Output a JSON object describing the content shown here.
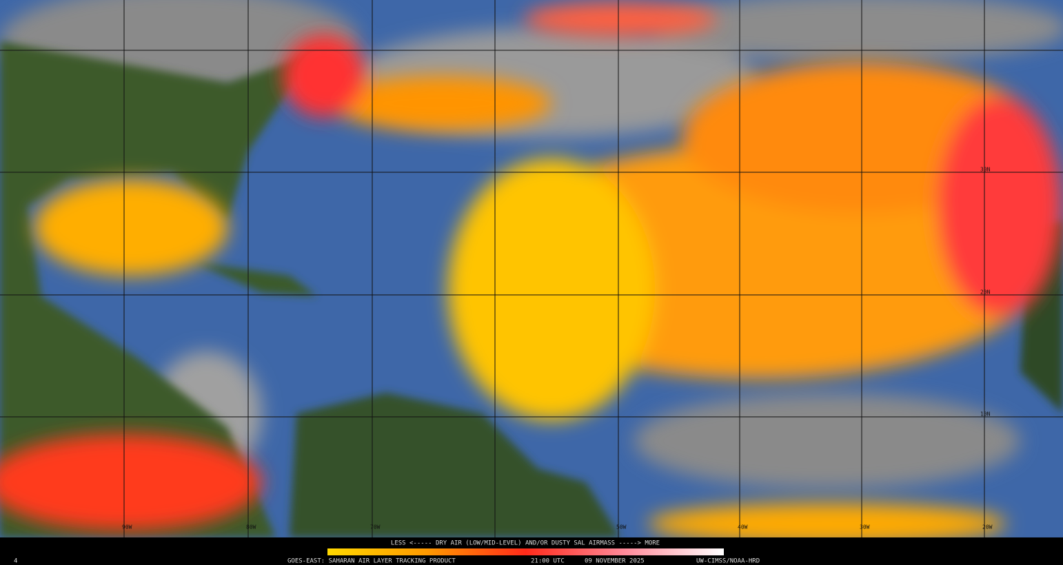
{
  "map": {
    "lon_labels": [
      "90W",
      "80W",
      "70W",
      "50W",
      "40W",
      "30W",
      "20W"
    ],
    "lat_labels": [
      "30N",
      "20N",
      "10N"
    ]
  },
  "legend": {
    "caption": "LESS <----- DRY AIR (LOW/MID-LEVEL) AND/OR DUSTY SAL AIRMASS -----> MORE"
  },
  "footer": {
    "frame": "4",
    "product": "GOES-EAST: SAHARAN AIR LAYER TRACKING PRODUCT",
    "time": "21:00 UTC",
    "date": "09 NOVEMBER 2025",
    "credit": "UW-CIMSS/NOAA-HRD"
  }
}
